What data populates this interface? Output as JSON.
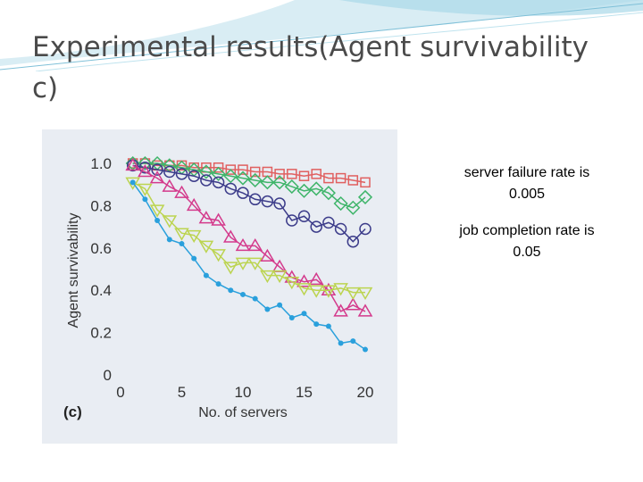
{
  "slide": {
    "title": "Experimental results(Agent survivability c)",
    "notes": {
      "failure_line1": "server failure rate is",
      "failure_line2": "0.005",
      "completion_line1": "job completion rate is",
      "completion_line2": "0.05"
    }
  },
  "colors": {
    "title": "#4a4a4a",
    "panel": "#e9edf3",
    "header_teal": "#bfe3ee"
  },
  "chart_data": {
    "type": "line",
    "panel_label": "(c)",
    "xlabel": "No. of servers",
    "ylabel": "Agent survivability",
    "xlim": [
      0,
      20
    ],
    "ylim": [
      0,
      1.0
    ],
    "xticks": [
      0,
      5,
      10,
      15,
      20
    ],
    "xtick_labels": [
      "0",
      "5",
      "10",
      "15",
      "20"
    ],
    "yticks": [
      0,
      0.2,
      0.4,
      0.6,
      0.8,
      1.0
    ],
    "ytick_labels": [
      "0",
      "0.2",
      "0.4",
      "0.6",
      "0.8",
      "1.0"
    ],
    "grid": false,
    "x": [
      1,
      2,
      3,
      4,
      5,
      6,
      7,
      8,
      9,
      10,
      11,
      12,
      13,
      14,
      15,
      16,
      17,
      18,
      19,
      20
    ],
    "series": [
      {
        "marker": "square",
        "color": "#e06060",
        "values": [
          1.0,
          1.0,
          0.99,
          0.99,
          0.99,
          0.98,
          0.98,
          0.98,
          0.97,
          0.97,
          0.96,
          0.96,
          0.95,
          0.95,
          0.94,
          0.95,
          0.93,
          0.93,
          0.92,
          0.91
        ]
      },
      {
        "marker": "diamond",
        "color": "#3fb56a",
        "values": [
          1.0,
          1.0,
          1.0,
          0.99,
          0.98,
          0.97,
          0.96,
          0.95,
          0.94,
          0.93,
          0.92,
          0.91,
          0.91,
          0.89,
          0.87,
          0.88,
          0.86,
          0.81,
          0.79,
          0.84
        ]
      },
      {
        "marker": "circle",
        "color": "#3c3c8a",
        "values": [
          0.99,
          0.98,
          0.97,
          0.96,
          0.95,
          0.94,
          0.92,
          0.91,
          0.88,
          0.86,
          0.83,
          0.82,
          0.81,
          0.73,
          0.75,
          0.7,
          0.72,
          0.69,
          0.63,
          0.69
        ]
      },
      {
        "marker": "triangle-up",
        "color": "#d43a8c",
        "values": [
          0.99,
          0.96,
          0.93,
          0.89,
          0.86,
          0.8,
          0.74,
          0.73,
          0.65,
          0.61,
          0.61,
          0.56,
          0.51,
          0.46,
          0.44,
          0.45,
          0.4,
          0.3,
          0.33,
          0.3
        ]
      },
      {
        "marker": "triangle-down",
        "color": "#bcd450",
        "values": [
          0.91,
          0.88,
          0.78,
          0.73,
          0.67,
          0.66,
          0.61,
          0.57,
          0.51,
          0.53,
          0.53,
          0.47,
          0.47,
          0.44,
          0.41,
          0.4,
          0.4,
          0.41,
          0.39,
          0.39
        ]
      },
      {
        "marker": "dot",
        "color": "#2aa0dc",
        "values": [
          0.91,
          0.83,
          0.73,
          0.64,
          0.62,
          0.55,
          0.47,
          0.43,
          0.4,
          0.38,
          0.36,
          0.31,
          0.33,
          0.27,
          0.29,
          0.24,
          0.23,
          0.15,
          0.16,
          0.12
        ]
      }
    ]
  }
}
